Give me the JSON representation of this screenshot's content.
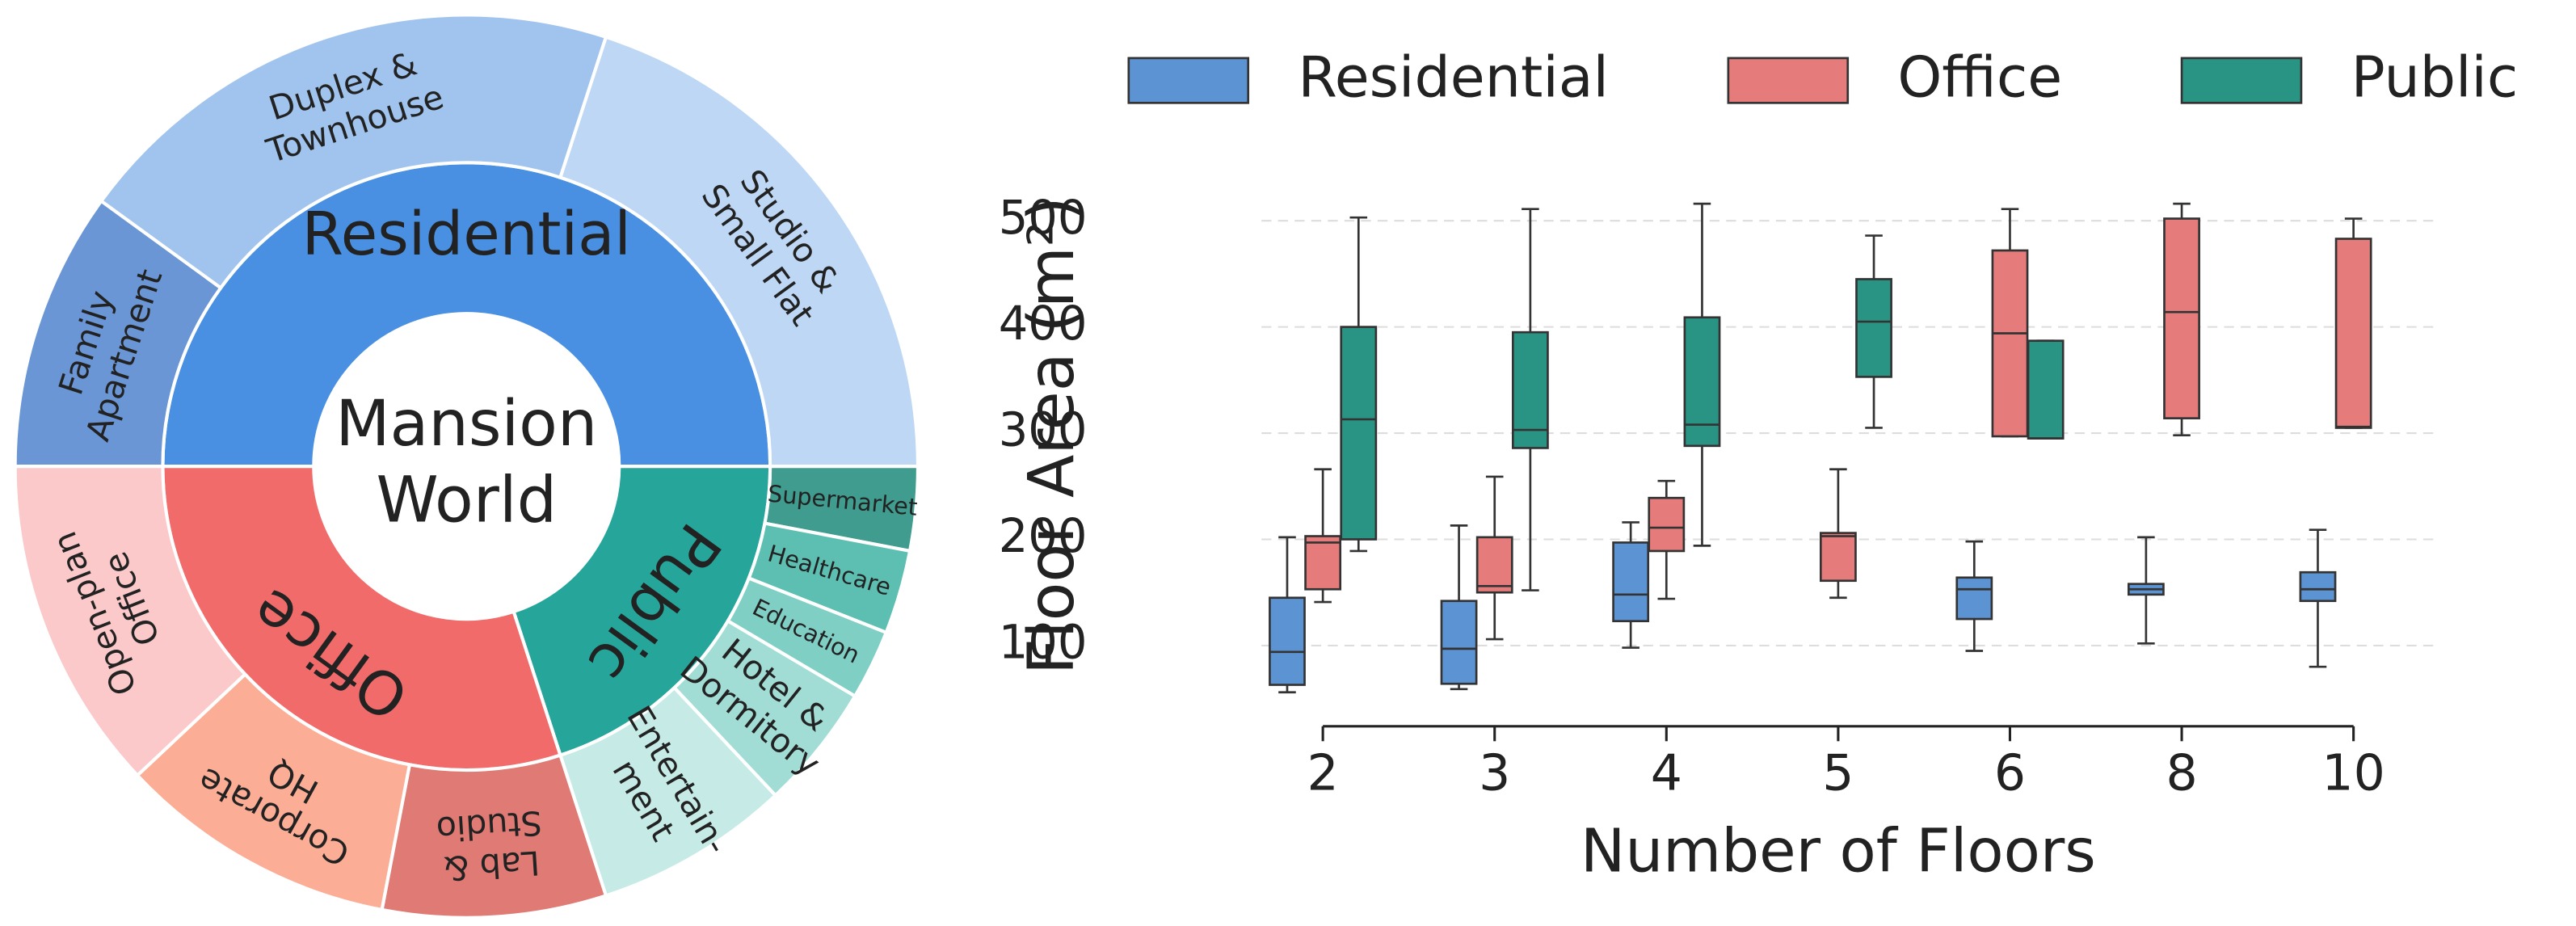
{
  "chart_data": [
    {
      "type": "sunburst",
      "center_label": [
        "Mansion",
        "World"
      ],
      "categories": [
        "Residential",
        "Public",
        "Office"
      ],
      "values": [
        50,
        20,
        30
      ],
      "colors": [
        "#4a90e2",
        "#26a69a",
        "#f26b6b"
      ],
      "children": [
        [
          {
            "name": [
              "Family",
              "Apartment"
            ],
            "value": 10,
            "color": "#6a96d6"
          },
          {
            "name": [
              "Duplex &",
              "Townhouse"
            ],
            "value": 20,
            "color": "#a0c4ee"
          },
          {
            "name": [
              "Studio &",
              "Small Flat"
            ],
            "value": 20,
            "color": "#bdd7f4"
          }
        ],
        [
          {
            "name": [
              "Supermarket"
            ],
            "value": 3,
            "color": "#3f9c8e"
          },
          {
            "name": [
              "Healthcare"
            ],
            "value": 3,
            "color": "#5dbfb2"
          },
          {
            "name": [
              "Education"
            ],
            "value": 2.5,
            "color": "#7fcfc5"
          },
          {
            "name": [
              "Hotel &",
              "Dormitory"
            ],
            "value": 4.5,
            "color": "#a2ddd5"
          },
          {
            "name": [
              "Entertain-",
              "ment"
            ],
            "value": 7,
            "color": "#c6ebe6"
          }
        ],
        [
          {
            "name": [
              "Lab &",
              "Studio"
            ],
            "value": 8,
            "color": "#e07a74"
          },
          {
            "name": [
              "Corporate",
              "HQ"
            ],
            "value": 10,
            "color": "#fbad95"
          },
          {
            "name": [
              "Open-plan",
              "Office"
            ],
            "value": 12,
            "color": "#fbc9c9"
          }
        ]
      ]
    },
    {
      "type": "box",
      "x_label": "Number of Floors",
      "y_label": "Floor Area (m²)",
      "categories": [
        "2",
        "3",
        "4",
        "5",
        "6",
        "8",
        "10"
      ],
      "ylim": [
        24,
        540
      ],
      "yticks": [
        100,
        200,
        300,
        400,
        500
      ],
      "grid": true,
      "legend": "top",
      "series": [
        {
          "name": "Residential",
          "color": "#5b93d3",
          "values": [
            [
              56,
              63,
              94,
              145,
              202
            ],
            [
              59,
              64,
              97,
              142,
              213
            ],
            [
              98,
              123,
              148,
              197,
              216
            ],
            null,
            [
              95,
              125,
              153,
              164,
              198
            ],
            [
              102,
              148,
              153,
              158,
              202
            ],
            [
              80,
              142,
              153,
              169,
              209
            ]
          ]
        },
        {
          "name": "Office",
          "color": "#e57b7b",
          "values": [
            [
              141,
              153,
              197,
              203,
              266
            ],
            [
              106,
              150,
              156,
              202,
              259
            ],
            [
              144,
              189,
              211,
              239,
              255
            ],
            [
              145,
              161,
              203,
              206,
              266
            ],
            [
              297,
              297,
              394,
              472,
              511
            ],
            [
              298,
              314,
              414,
              502,
              516
            ],
            [
              305,
              305,
              306,
              483,
              502
            ]
          ]
        },
        {
          "name": "Public",
          "color": "#2a9484",
          "values": [
            [
              189,
              200,
              313,
              400,
              503
            ],
            [
              152,
              286,
              303,
              395,
              511
            ],
            [
              194,
              288,
              308,
              409,
              516
            ],
            [
              305,
              353,
              405,
              445,
              486
            ],
            [
              295,
              295,
              295,
              387,
              387
            ],
            null,
            null
          ]
        }
      ]
    }
  ]
}
